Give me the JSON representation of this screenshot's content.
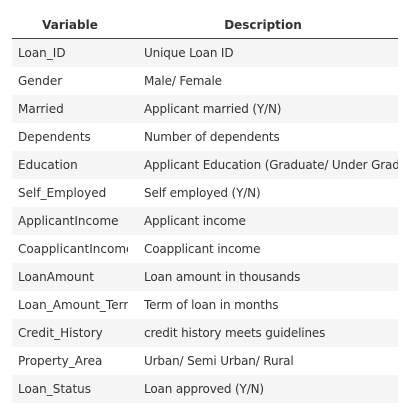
{
  "table": {
    "headers": [
      "Variable",
      "Description"
    ],
    "rows": [
      [
        "Loan_ID",
        "Unique Loan ID"
      ],
      [
        "Gender",
        "Male/ Female"
      ],
      [
        "Married",
        "Applicant married (Y/N)"
      ],
      [
        "Dependents",
        "Number of dependents"
      ],
      [
        "Education",
        "Applicant Education (Graduate/ Under Graduate)"
      ],
      [
        "Self_Employed",
        "Self employed (Y/N)"
      ],
      [
        "ApplicantIncome",
        "Applicant income"
      ],
      [
        "CoapplicantIncome",
        "Coapplicant income"
      ],
      [
        "LoanAmount",
        "Loan amount in thousands"
      ],
      [
        "Loan_Amount_Term",
        "Term of loan in months"
      ],
      [
        "Credit_History",
        "credit history meets guidelines"
      ],
      [
        "Property_Area",
        "Urban/ Semi Urban/ Rural"
      ],
      [
        "Loan_Status",
        "Loan approved (Y/N)"
      ]
    ]
  }
}
